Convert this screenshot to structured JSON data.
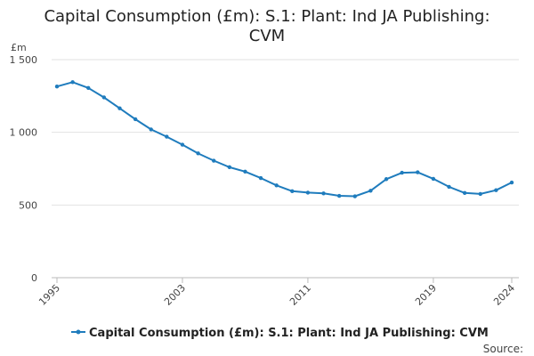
{
  "chart_data": {
    "type": "line",
    "title_lines": [
      "Capital Consumption (£m): S.1: Plant: Ind JA Publishing:",
      "CVM"
    ],
    "ylabel": "£m",
    "ylim": [
      0,
      1500
    ],
    "ytick_values": [
      0,
      500,
      1000,
      1500
    ],
    "ytick_labels": [
      "0",
      "500",
      "1 000",
      "1 500"
    ],
    "xlim": [
      1995,
      2024
    ],
    "xtick_values": [
      1995,
      2003,
      2011,
      2019,
      2024
    ],
    "xtick_labels": [
      "1995",
      "2003",
      "2011",
      "2019",
      "2024"
    ],
    "grid": true,
    "legend_position": "bottom",
    "series": [
      {
        "name": "Capital Consumption (£m): S.1: Plant: Ind JA Publishing: CVM",
        "color": "#1f7cbd",
        "x": [
          1995,
          1996,
          1997,
          1998,
          1999,
          2000,
          2001,
          2002,
          2003,
          2004,
          2005,
          2006,
          2007,
          2008,
          2009,
          2010,
          2011,
          2012,
          2013,
          2014,
          2015,
          2016,
          2017,
          2018,
          2019,
          2020,
          2021,
          2022,
          2023,
          2024
        ],
        "values": [
          1315,
          1345,
          1305,
          1240,
          1165,
          1090,
          1020,
          970,
          915,
          855,
          805,
          760,
          730,
          685,
          635,
          595,
          585,
          580,
          563,
          560,
          598,
          678,
          722,
          725,
          680,
          625,
          583,
          576,
          602,
          655
        ]
      }
    ]
  },
  "legend": {
    "label": "Capital Consumption (£m): S.1: Plant: Ind JA Publishing: CVM"
  },
  "source": {
    "label": "Source:"
  }
}
